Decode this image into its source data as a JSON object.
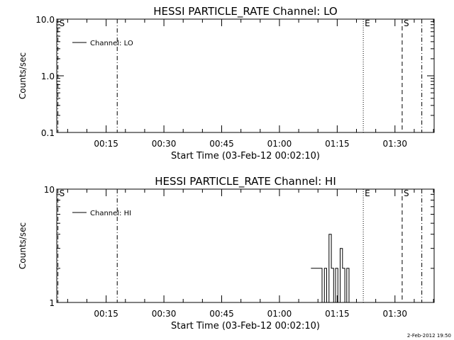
{
  "chart_data": [
    {
      "type": "line",
      "title": "HESSI PARTICLE_RATE Channel: LO",
      "xlabel": "Start Time (03-Feb-12 00:02:10)",
      "ylabel": "Counts/sec",
      "y_scale": "log",
      "ylim": [
        0.1,
        10.0
      ],
      "y_ticks": [
        0.1,
        1.0,
        10.0
      ],
      "y_tick_labels": [
        "0.1",
        "1.0",
        "10.0"
      ],
      "x_unit": "minutes after 00:02:10",
      "xlim": [
        0,
        98
      ],
      "x_ticks": [
        12.83,
        27.83,
        42.83,
        57.83,
        72.83,
        87.83
      ],
      "x_tick_labels": [
        "00:15",
        "00:30",
        "00:45",
        "01:00",
        "01:15",
        "01:30"
      ],
      "legend": {
        "label": "Channel: LO",
        "position": "top-left"
      },
      "markers": [
        {
          "x": 0.3,
          "style": "dashdot",
          "label": "S"
        },
        {
          "x": 15.7,
          "style": "dashdot",
          "label": ""
        },
        {
          "x": 79.6,
          "style": "dotted",
          "label": "E"
        },
        {
          "x": 89.7,
          "style": "dashed",
          "label": "S"
        },
        {
          "x": 94.8,
          "style": "dashdot",
          "label": ""
        }
      ],
      "series": [
        {
          "values": []
        }
      ]
    },
    {
      "type": "line",
      "title": "HESSI PARTICLE_RATE Channel: HI",
      "xlabel": "Start Time (03-Feb-12 00:02:10)",
      "ylabel": "Counts/sec",
      "y_scale": "log",
      "ylim": [
        1,
        10
      ],
      "y_ticks": [
        1,
        10
      ],
      "y_tick_labels": [
        "1",
        "10"
      ],
      "x_unit": "minutes after 00:02:10",
      "xlim": [
        0,
        98
      ],
      "x_ticks": [
        12.83,
        27.83,
        42.83,
        57.83,
        72.83,
        87.83
      ],
      "x_tick_labels": [
        "00:15",
        "00:30",
        "00:45",
        "01:00",
        "01:15",
        "01:30"
      ],
      "legend": {
        "label": "Channel: HI",
        "position": "top-left"
      },
      "markers": [
        {
          "x": 0.3,
          "style": "dashdot",
          "label": "S"
        },
        {
          "x": 15.7,
          "style": "dashdot",
          "label": ""
        },
        {
          "x": 79.6,
          "style": "dotted",
          "label": "E"
        },
        {
          "x": 89.7,
          "style": "dashed",
          "label": "S"
        },
        {
          "x": 94.8,
          "style": "dashdot",
          "label": ""
        }
      ],
      "series": [
        {
          "x": [
            66.0,
            68.9,
            68.9,
            69.5,
            69.5,
            70.1,
            70.1,
            70.7,
            70.7,
            71.3,
            71.3,
            71.9,
            71.9,
            72.4,
            72.4,
            73.0,
            73.0,
            73.6,
            73.6,
            74.2,
            74.2,
            74.8,
            74.8,
            75.3,
            75.3,
            75.9,
            75.9
          ],
          "values": [
            2,
            2,
            1,
            1,
            2,
            2,
            1,
            1,
            4,
            4,
            2,
            2,
            1,
            1,
            2,
            2,
            1,
            1,
            3,
            3,
            2,
            2,
            1,
            1,
            2,
            2,
            1
          ]
        }
      ]
    }
  ],
  "footer": {
    "timestamp": "2-Feb-2012 19:50"
  }
}
